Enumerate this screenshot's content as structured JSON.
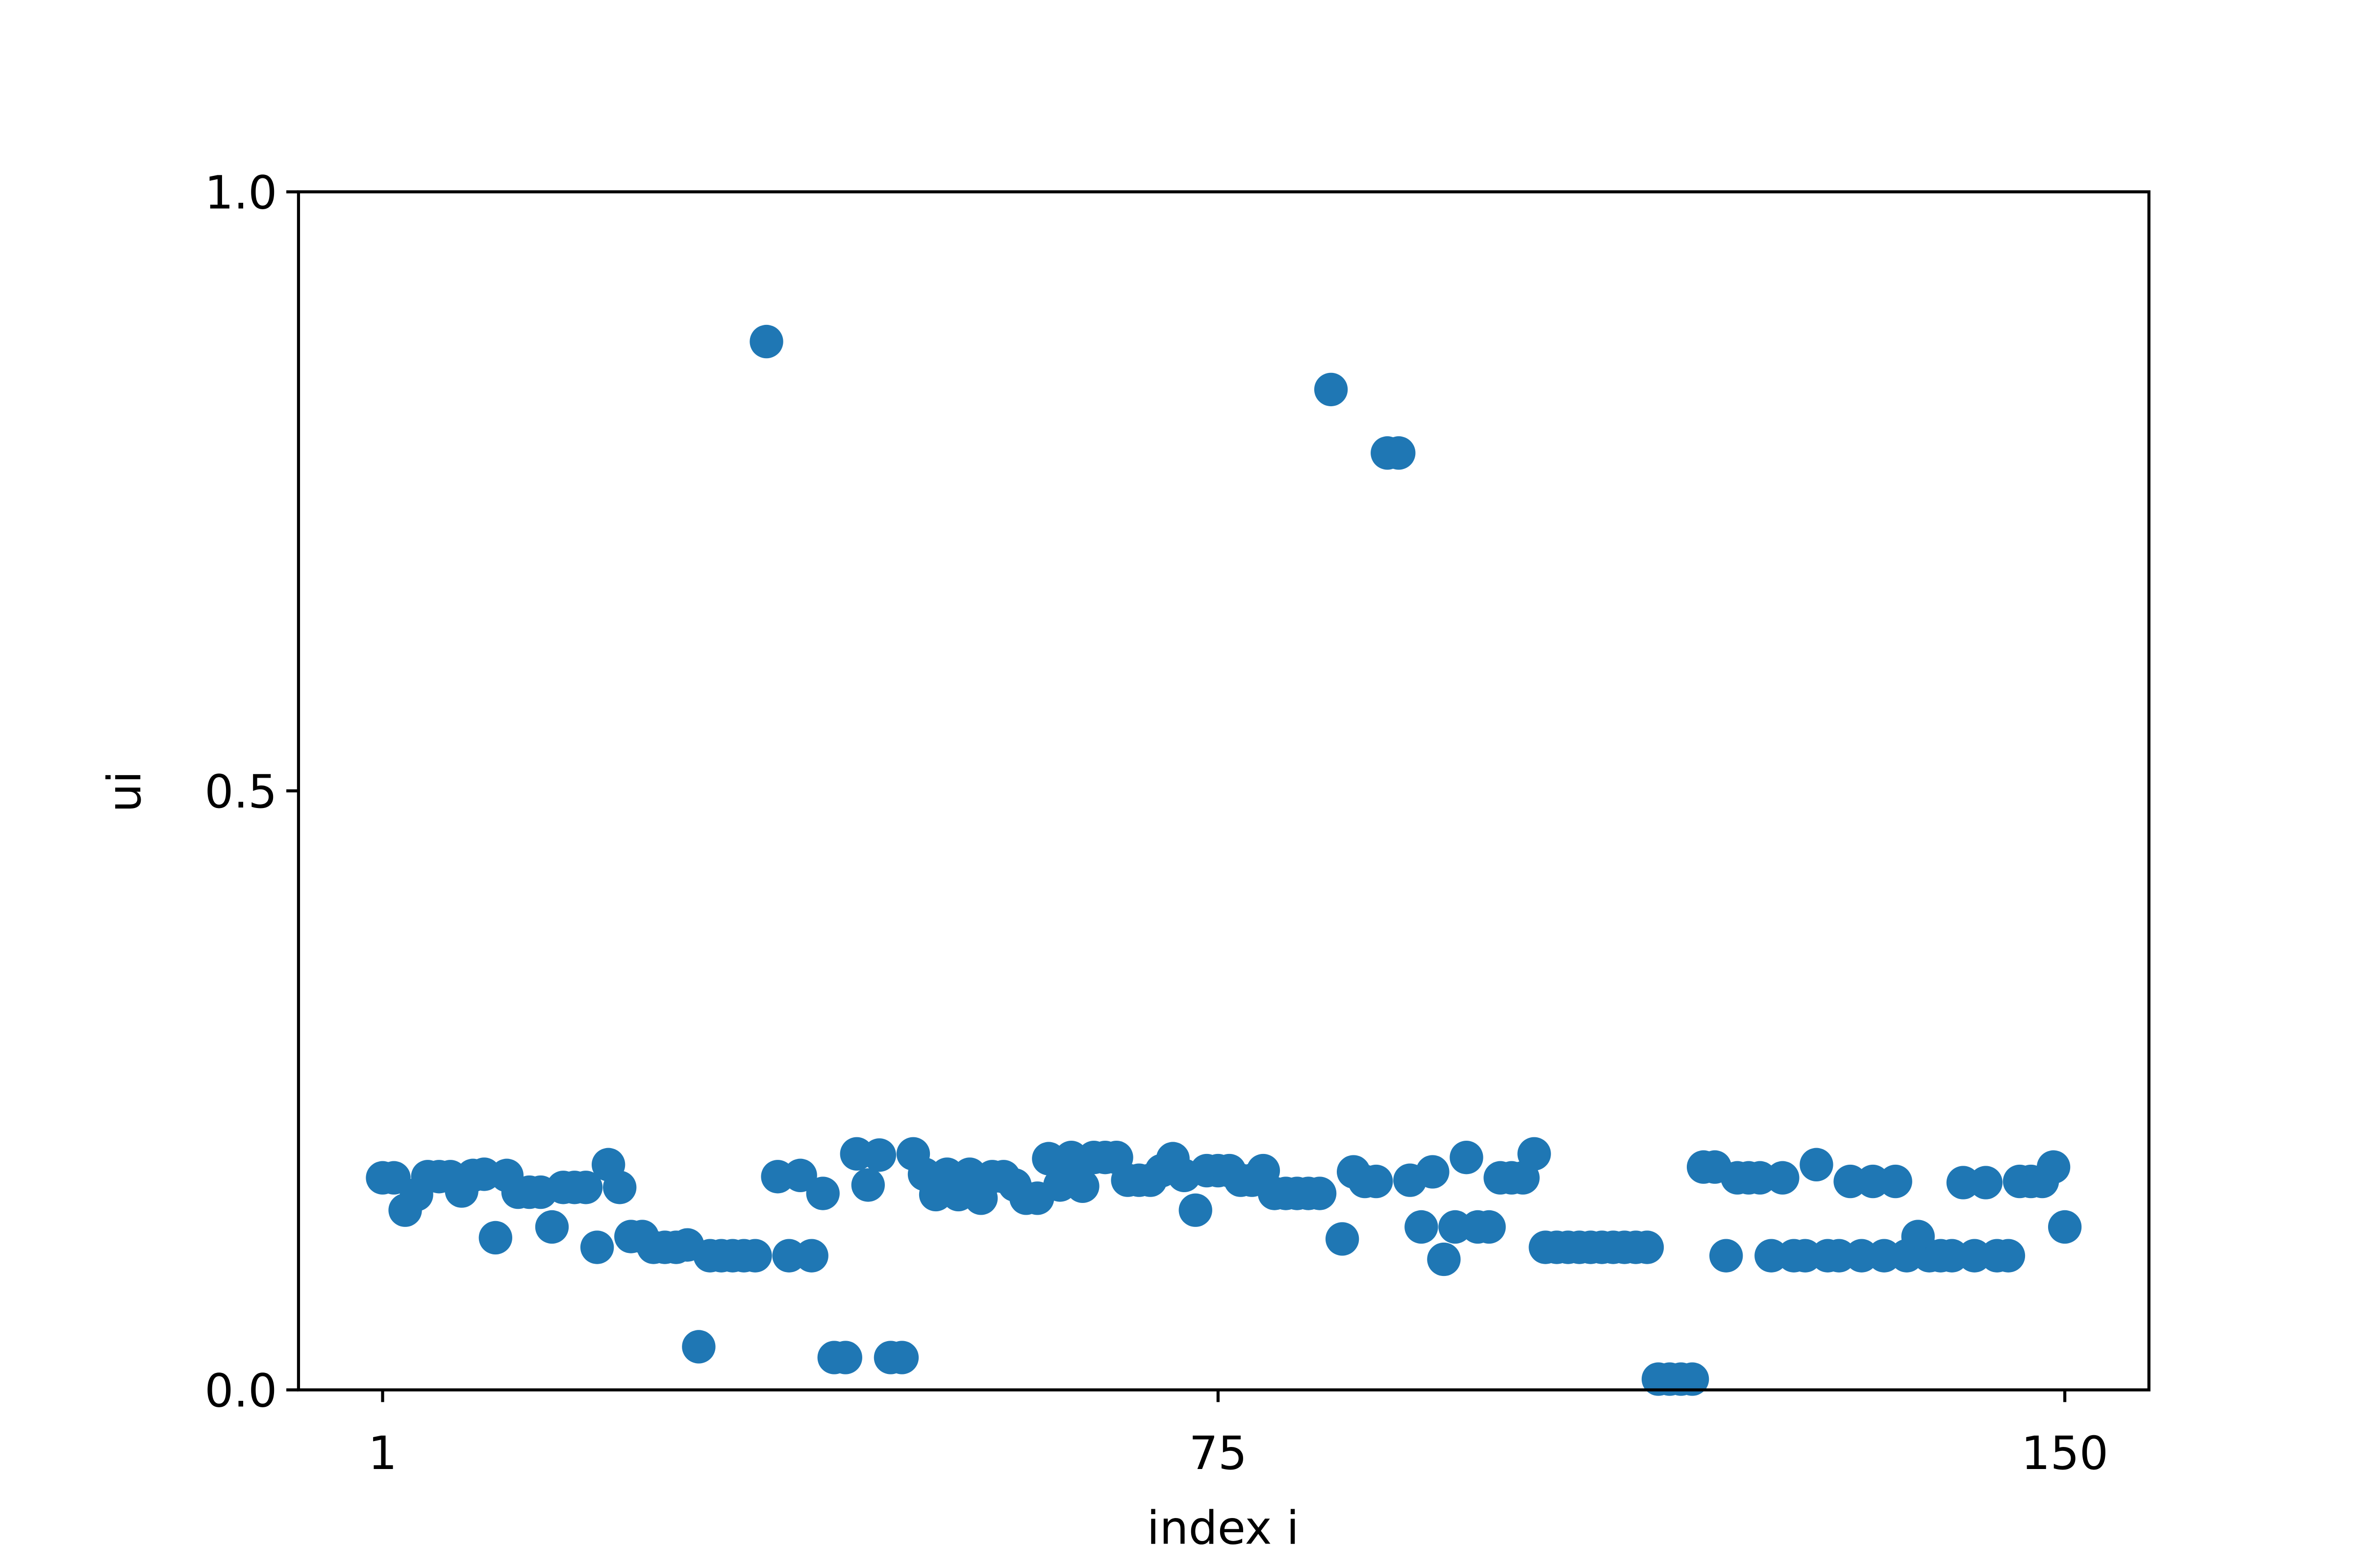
{
  "chart_data": {
    "type": "scatter",
    "xlabel": "index i",
    "ylabel": "ui",
    "color": "#1f77b4",
    "x": [
      1,
      2,
      3,
      4,
      5,
      6,
      7,
      8,
      9,
      10,
      11,
      12,
      13,
      14,
      15,
      16,
      17,
      18,
      19,
      20,
      21,
      22,
      23,
      24,
      25,
      26,
      27,
      28,
      29,
      30,
      31,
      32,
      33,
      34,
      35,
      36,
      37,
      38,
      39,
      40,
      41,
      42,
      43,
      44,
      45,
      46,
      47,
      48,
      49,
      50,
      51,
      52,
      53,
      54,
      55,
      56,
      57,
      58,
      59,
      60,
      61,
      62,
      63,
      64,
      65,
      66,
      67,
      68,
      69,
      70,
      71,
      72,
      73,
      74,
      75,
      76,
      77,
      78,
      79,
      80,
      81,
      82,
      83,
      84,
      85,
      86,
      87,
      88,
      89,
      90,
      91,
      92,
      93,
      94,
      95,
      96,
      97,
      98,
      99,
      100,
      101,
      102,
      103,
      104,
      105,
      106,
      107,
      108,
      109,
      110,
      111,
      112,
      113,
      114,
      115,
      116,
      117,
      118,
      119,
      120,
      121,
      122,
      123,
      124,
      125,
      126,
      127,
      128,
      129,
      130,
      131,
      132,
      133,
      134,
      135,
      136,
      137,
      138,
      139,
      140,
      141,
      142,
      143,
      144,
      145,
      146,
      147,
      148,
      149,
      150
    ],
    "values": [
      0.177,
      0.177,
      0.15,
      0.163,
      0.178,
      0.178,
      0.178,
      0.166,
      0.179,
      0.18,
      0.127,
      0.179,
      0.165,
      0.165,
      0.165,
      0.136,
      0.169,
      0.169,
      0.169,
      0.119,
      0.188,
      0.169,
      0.128,
      0.128,
      0.119,
      0.119,
      0.119,
      0.121,
      0.036,
      0.112,
      0.112,
      0.112,
      0.112,
      0.112,
      0.875,
      0.178,
      0.112,
      0.179,
      0.112,
      0.164,
      0.027,
      0.027,
      0.197,
      0.171,
      0.196,
      0.027,
      0.027,
      0.197,
      0.18,
      0.163,
      0.18,
      0.163,
      0.18,
      0.16,
      0.178,
      0.178,
      0.171,
      0.16,
      0.16,
      0.193,
      0.171,
      0.194,
      0.17,
      0.194,
      0.194,
      0.194,
      0.175,
      0.175,
      0.175,
      0.183,
      0.193,
      0.179,
      0.15,
      0.183,
      0.183,
      0.183,
      0.175,
      0.175,
      0.183,
      0.164,
      0.164,
      0.164,
      0.164,
      0.164,
      0.835,
      0.126,
      0.182,
      0.174,
      0.174,
      0.782,
      0.782,
      0.175,
      0.136,
      0.182,
      0.109,
      0.136,
      0.194,
      0.136,
      0.136,
      0.177,
      0.177,
      0.177,
      0.197,
      0.119,
      0.119,
      0.119,
      0.119,
      0.119,
      0.119,
      0.119,
      0.119,
      0.119,
      0.119,
      0.009,
      0.009,
      0.009,
      0.009,
      0.186,
      0.186,
      0.112,
      0.177,
      0.177,
      0.177,
      0.112,
      0.177,
      0.112,
      0.112,
      0.188,
      0.112,
      0.112,
      0.174,
      0.112,
      0.174,
      0.112,
      0.174,
      0.112,
      0.128,
      0.112,
      0.112,
      0.112,
      0.173,
      0.112,
      0.173,
      0.112,
      0.112,
      0.174,
      0.174,
      0.174,
      0.186,
      0.136
    ],
    "xlim": [
      -6.45,
      157.45
    ],
    "xticks": [
      1,
      75,
      150
    ],
    "ylim": [
      0,
      1
    ],
    "yticks": [
      {
        "value": 0,
        "label": "0.0"
      },
      0.5,
      {
        "value": 1,
        "label": "1.0"
      }
    ]
  }
}
